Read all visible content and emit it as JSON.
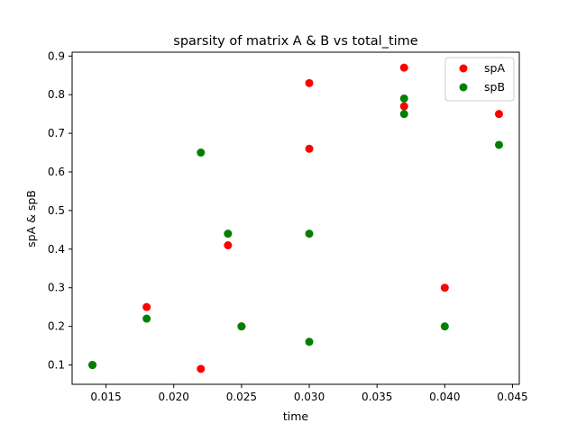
{
  "chart_data": {
    "type": "scatter",
    "title": "sparsity of matrix A & B vs total_time",
    "xlabel": "time",
    "ylabel": "spA & spB",
    "xlim": [
      0.0125,
      0.0455
    ],
    "ylim": [
      0.05,
      0.91
    ],
    "xticks": [
      0.015,
      0.02,
      0.025,
      0.03,
      0.035,
      0.04,
      0.045
    ],
    "xtick_labels": [
      "0.015",
      "0.020",
      "0.025",
      "0.030",
      "0.035",
      "0.040",
      "0.045"
    ],
    "yticks": [
      0.1,
      0.2,
      0.3,
      0.4,
      0.5,
      0.6,
      0.7,
      0.8,
      0.9
    ],
    "ytick_labels": [
      "0.1",
      "0.2",
      "0.3",
      "0.4",
      "0.5",
      "0.6",
      "0.7",
      "0.8",
      "0.9"
    ],
    "grid": false,
    "legend_position": "top-right",
    "series": [
      {
        "name": "spA",
        "color": "#ff0000",
        "points": [
          {
            "x": 0.014,
            "y": 0.1
          },
          {
            "x": 0.018,
            "y": 0.25
          },
          {
            "x": 0.022,
            "y": 0.09
          },
          {
            "x": 0.024,
            "y": 0.41
          },
          {
            "x": 0.025,
            "y": 0.2
          },
          {
            "x": 0.03,
            "y": 0.83
          },
          {
            "x": 0.03,
            "y": 0.66
          },
          {
            "x": 0.037,
            "y": 0.87
          },
          {
            "x": 0.037,
            "y": 0.77
          },
          {
            "x": 0.04,
            "y": 0.3
          },
          {
            "x": 0.044,
            "y": 0.75
          }
        ]
      },
      {
        "name": "spB",
        "color": "#008000",
        "points": [
          {
            "x": 0.014,
            "y": 0.1
          },
          {
            "x": 0.018,
            "y": 0.22
          },
          {
            "x": 0.022,
            "y": 0.65
          },
          {
            "x": 0.024,
            "y": 0.44
          },
          {
            "x": 0.025,
            "y": 0.2
          },
          {
            "x": 0.03,
            "y": 0.44
          },
          {
            "x": 0.03,
            "y": 0.16
          },
          {
            "x": 0.037,
            "y": 0.79
          },
          {
            "x": 0.037,
            "y": 0.75
          },
          {
            "x": 0.04,
            "y": 0.2
          },
          {
            "x": 0.044,
            "y": 0.67
          }
        ]
      }
    ]
  }
}
